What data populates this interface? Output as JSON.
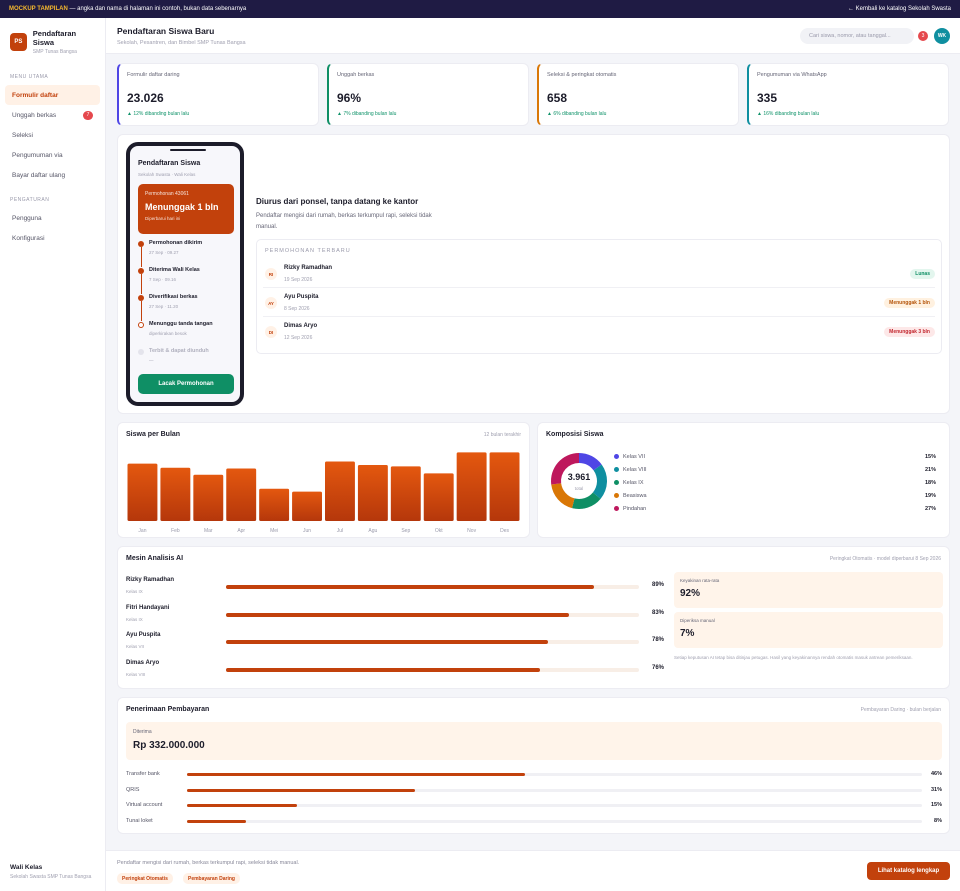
{
  "topbar": {
    "tag": "MOCKUP TAMPILAN",
    "note": "— angka dan nama di halaman ini contoh, bukan data sebenarnya",
    "back_link": "← Kembali ke katalog Sekolah Swasta"
  },
  "brand": {
    "initials": "PS",
    "title": "Pendaftaran Siswa",
    "subtitle": "SMP Tunas Bangsa"
  },
  "sidebar": {
    "section_main": "MENU UTAMA",
    "items": [
      {
        "label": "Formulir daftar"
      },
      {
        "label": "Unggah berkas",
        "badge": "7"
      },
      {
        "label": "Seleksi"
      },
      {
        "label": "Pengumuman via"
      },
      {
        "label": "Bayar daftar ulang"
      }
    ],
    "section_settings": "PENGATURAN",
    "settings": [
      {
        "label": "Pengguna"
      },
      {
        "label": "Konfigurasi"
      }
    ],
    "footer_title": "Wali Kelas",
    "footer_sub": "Sekolah Swasta SMP Tunas Bangsa"
  },
  "header": {
    "title": "Pendaftaran Siswa Baru",
    "subtitle": "Sekolah, Pesantren, dan Bimbel SMP Tunas Bangsa",
    "search_placeholder": "Cari siswa, nomor, atau tanggal...",
    "notif_count": "3",
    "avatar": "WK"
  },
  "stats": [
    {
      "label": "Formulir daftar daring",
      "value": "23.026",
      "delta": "▲ 12% dibanding bulan lalu",
      "color": "#4f46e5"
    },
    {
      "label": "Unggah berkas",
      "value": "96%",
      "delta": "▲ 7% dibanding bulan lalu",
      "color": "#0f8f65"
    },
    {
      "label": "Seleksi & peringkat otomatis",
      "value": "658",
      "delta": "▲ 6% dibanding bulan lalu",
      "color": "#d97706"
    },
    {
      "label": "Pengumuman via WhatsApp",
      "value": "335",
      "delta": "▲ 16% dibanding bulan lalu",
      "color": "#0f8fa0"
    }
  ],
  "phone": {
    "title": "Pendaftaran Siswa",
    "subtitle": "Sekolah Swasta · Wali Kelas",
    "card_label": "Permohonan 43061",
    "card_value": "Menunggak 1 bln",
    "card_meta": "Diperbarui hari ini",
    "timeline": [
      {
        "title": "Permohonan dikirim",
        "sub": "27 Sep · 09.27",
        "state": "done"
      },
      {
        "title": "Diterima Wali Kelas",
        "sub": "7 Sep · 09.16",
        "state": "done"
      },
      {
        "title": "Diverifikasi berkas",
        "sub": "27 Sep · 11.20",
        "state": "done"
      },
      {
        "title": "Menunggu tanda tangan",
        "sub": "diperkirakan besok",
        "state": "current"
      },
      {
        "title": "Terbit & dapat diunduh",
        "sub": "—",
        "state": "pending"
      }
    ],
    "button": "Lacak Permohonan"
  },
  "hero": {
    "title": "Diurus dari ponsel, tanpa datang ke kantor",
    "desc": "Pendaftar mengisi dari rumah, berkas terkumpul rapi, seleksi tidak manual."
  },
  "recent": {
    "heading": "PERMOHONAN TERBARU",
    "rows": [
      {
        "initials": "RI",
        "name": "Rizky Ramadhan",
        "date": "19 Sep 2026",
        "status": "Lunas",
        "fg": "#0f8f65",
        "bg": "#e3f6ee"
      },
      {
        "initials": "AY",
        "name": "Ayu Puspita",
        "date": "8 Sep 2026",
        "status": "Menunggak 1 bln",
        "fg": "#b45309",
        "bg": "#fff1e0"
      },
      {
        "initials": "DI",
        "name": "Dimas Aryo",
        "date": "12 Sep 2026",
        "status": "Menunggak 3 bln",
        "fg": "#c2262e",
        "bg": "#fde8e8"
      }
    ]
  },
  "monthly": {
    "title": "Siswa per Bulan",
    "meta": "12 bulan terakhir"
  },
  "composition": {
    "title": "Komposisi Siswa",
    "total": "3.961",
    "total_label": "total",
    "items": [
      {
        "name": "Kelas VII",
        "value": 15,
        "display": "15%",
        "color": "#4f46e5"
      },
      {
        "name": "Kelas VIII",
        "value": 21,
        "display": "21%",
        "color": "#0f8fa0"
      },
      {
        "name": "Kelas IX",
        "value": 18,
        "display": "18%",
        "color": "#0f8f65"
      },
      {
        "name": "Beasiswa",
        "value": 19,
        "display": "19%",
        "color": "#d97706"
      },
      {
        "name": "Pindahan",
        "value": 27,
        "display": "27%",
        "color": "#be185d"
      }
    ]
  },
  "chart_data": {
    "type": "bar",
    "categories": [
      "Jan",
      "Feb",
      "Mar",
      "Apr",
      "Mei",
      "Jun",
      "Jul",
      "Agu",
      "Sep",
      "Okt",
      "Nov",
      "Des"
    ],
    "values": [
      82,
      76,
      66,
      75,
      46,
      42,
      85,
      80,
      78,
      68,
      98,
      98
    ],
    "ylim": [
      0,
      100
    ],
    "title": "Siswa per Bulan",
    "xlabel": "",
    "ylabel": "",
    "color": "#c2410c"
  },
  "ai": {
    "title": "Mesin Analisis AI",
    "meta": "Peringkat Otomatis · model diperbarui 8 Sep 2026",
    "rows": [
      {
        "name": "Rizky Ramadhan",
        "sub": "Kelas IX",
        "value": 89,
        "display": "89%"
      },
      {
        "name": "Fitri Handayani",
        "sub": "Kelas IX",
        "value": 83,
        "display": "83%"
      },
      {
        "name": "Ayu Puspita",
        "sub": "Kelas VII",
        "value": 78,
        "display": "78%"
      },
      {
        "name": "Dimas Aryo",
        "sub": "Kelas VIII",
        "value": 76,
        "display": "76%"
      }
    ],
    "conf_label": "Keyakinan rata-rata",
    "conf_value": "92%",
    "manual_label": "Diperiksa manual",
    "manual_value": "7%",
    "note": "Setiap keputusan AI tetap bisa ditinjau petugas. Hasil yang keyakinannya rendah otomatis masuk antrean pemeriksaan."
  },
  "payment": {
    "title": "Penerimaan Pembayaran",
    "meta": "Pembayaran Daring · bulan berjalan",
    "label": "Diterima",
    "value": "Rp 332.000.000",
    "rows": [
      {
        "name": "Transfer bank",
        "value": 46,
        "display": "46%"
      },
      {
        "name": "QRIS",
        "value": 31,
        "display": "31%"
      },
      {
        "name": "Virtual account",
        "value": 15,
        "display": "15%"
      },
      {
        "name": "Tunai loket",
        "value": 8,
        "display": "8%"
      }
    ]
  },
  "footer": {
    "text": "Pendaftar mengisi dari rumah, berkas terkumpul rapi, seleksi tidak manual.",
    "chips": [
      "Peringkat Otomatis",
      "Pembayaran Daring"
    ],
    "button": "Lihat katalog lengkap"
  }
}
